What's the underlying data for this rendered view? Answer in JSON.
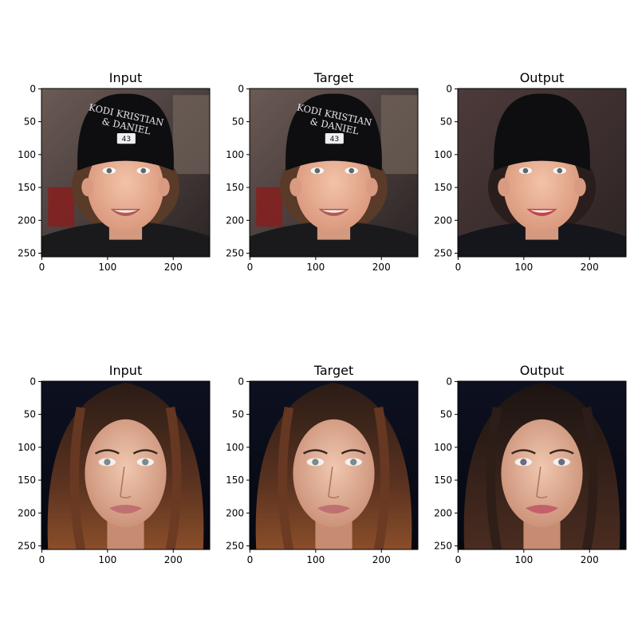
{
  "figure": {
    "xticks": [
      "0",
      "100",
      "200"
    ],
    "yticks": [
      "0",
      "50",
      "100",
      "150",
      "200",
      "250"
    ],
    "panels": [
      {
        "title": "Input",
        "scene": "boy-cap"
      },
      {
        "title": "Target",
        "scene": "boy-cap"
      },
      {
        "title": "Output",
        "scene": "boy-cap-output"
      },
      {
        "title": "Input",
        "scene": "woman"
      },
      {
        "title": "Target",
        "scene": "woman"
      },
      {
        "title": "Output",
        "scene": "woman-output"
      }
    ]
  },
  "cap_text": {
    "line1": "KODI KRISTIAN",
    "line2": "& DANIEL",
    "badge": "43"
  }
}
